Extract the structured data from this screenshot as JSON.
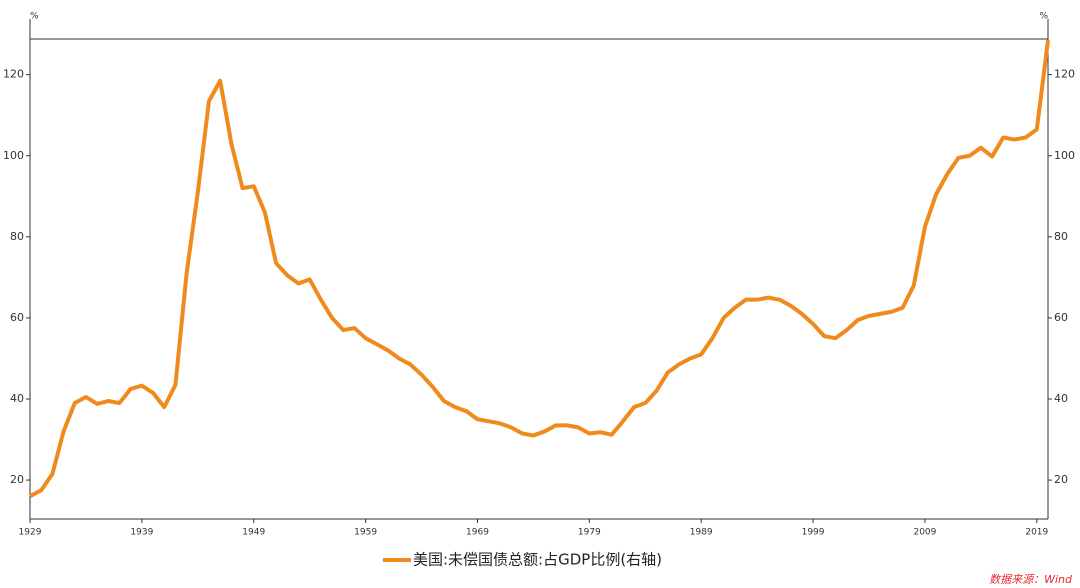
{
  "chart_data": {
    "type": "line",
    "y_unit": "%",
    "y2_unit": "%",
    "x": [
      1929,
      1930,
      1931,
      1932,
      1933,
      1934,
      1935,
      1936,
      1937,
      1938,
      1939,
      1940,
      1941,
      1942,
      1943,
      1944,
      1945,
      1946,
      1947,
      1948,
      1949,
      1950,
      1951,
      1952,
      1953,
      1954,
      1955,
      1956,
      1957,
      1958,
      1959,
      1960,
      1961,
      1962,
      1963,
      1964,
      1965,
      1966,
      1967,
      1968,
      1969,
      1970,
      1971,
      1972,
      1973,
      1974,
      1975,
      1976,
      1977,
      1978,
      1979,
      1980,
      1981,
      1982,
      1983,
      1984,
      1985,
      1986,
      1987,
      1988,
      1989,
      1990,
      1991,
      1992,
      1993,
      1994,
      1995,
      1996,
      1997,
      1998,
      1999,
      2000,
      2001,
      2002,
      2003,
      2004,
      2005,
      2006,
      2007,
      2008,
      2009,
      2010,
      2011,
      2012,
      2013,
      2014,
      2015,
      2016,
      2017,
      2018,
      2019,
      2020
    ],
    "series": [
      {
        "name": "美国:未偿国债总额:占GDP比例(右轴)",
        "color": "#f08a1c",
        "axis": "y2",
        "values": [
          16,
          17.5,
          21.5,
          32,
          39,
          40.5,
          38.8,
          39.5,
          39,
          42.5,
          43.3,
          41.5,
          38,
          43.5,
          71,
          91,
          113.5,
          118.5,
          103,
          92,
          92.5,
          86,
          73.5,
          70.5,
          68.5,
          69.5,
          64.5,
          60,
          57,
          57.5,
          55,
          53.5,
          52,
          50,
          48.5,
          46,
          43,
          39.5,
          38,
          37,
          35,
          34.5,
          34,
          33,
          31.5,
          31,
          32,
          33.5,
          33.5,
          33,
          31.5,
          31.8,
          31.2,
          34.5,
          38,
          39,
          42,
          46.5,
          48.5,
          50,
          51,
          55,
          60,
          62.5,
          64.5,
          64.5,
          65,
          64.5,
          63,
          61,
          58.5,
          55.5,
          55,
          57,
          59.5,
          60.5,
          61,
          61.5,
          62.5,
          68,
          82.5,
          90.5,
          95.5,
          99.5,
          100,
          102,
          99.8,
          104.5,
          104,
          104.5,
          106.5,
          128.5
        ]
      }
    ],
    "xlim": [
      1929,
      2020
    ],
    "xticks": [
      1929,
      1939,
      1949,
      1959,
      1969,
      1979,
      1989,
      1999,
      2009,
      2019
    ],
    "ylim": [
      10.4,
      128.8
    ],
    "yticks": [
      20,
      40,
      60,
      80,
      100,
      120
    ],
    "y2lim": [
      10.4,
      128.8
    ],
    "y2ticks": [
      20,
      40,
      60,
      80,
      100,
      120
    ],
    "source": "数据来源：Wind"
  }
}
